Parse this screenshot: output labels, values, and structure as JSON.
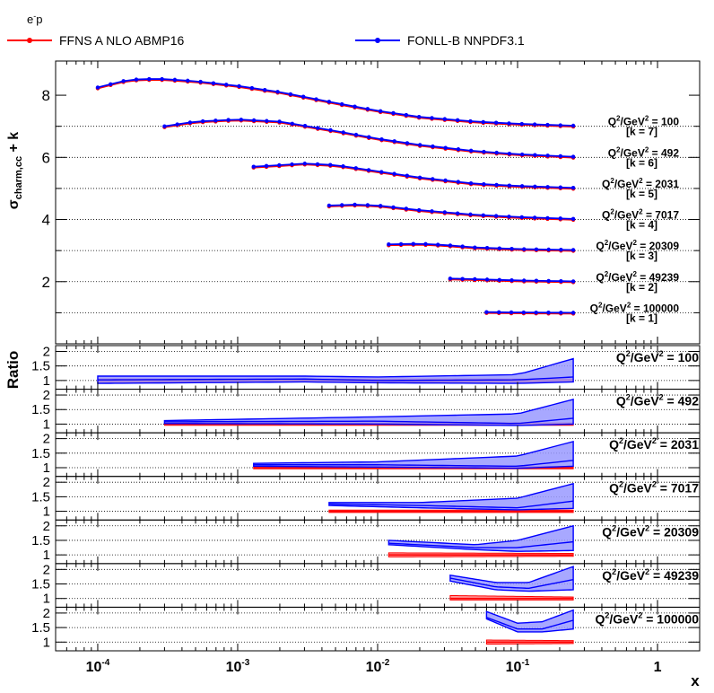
{
  "header": {
    "process": "e",
    "process_sup": "-",
    "process_tail": "p"
  },
  "legend": [
    {
      "label": "FFNS A NLO ABMP16",
      "color": "#ff0000"
    },
    {
      "label": "FONLL-B NNPDF3.1",
      "color": "#0000ff"
    }
  ],
  "axes": {
    "y_top_label": "σ",
    "y_top_label_sub": "charm,cc",
    "y_top_label_tail": " + k",
    "y_ratio_label": "Ratio",
    "x_label": "x",
    "x_ticks": [
      "10",
      "10",
      "10",
      "10",
      "1"
    ],
    "x_tick_exps": [
      "-4",
      "-3",
      "-2",
      "-1",
      ""
    ],
    "y_top_ticks": [
      "2",
      "4",
      "6",
      "8"
    ],
    "y_ratio_ticks": [
      "1",
      "1.5",
      "2"
    ]
  },
  "colors": {
    "ffns": "#ff0000",
    "fonll": "#0000ff",
    "fonll_band": "#9999ff",
    "ffns_band": "#ff9999"
  },
  "chart_data": {
    "type": "line",
    "x_scale": "log",
    "xlim": [
      5e-05,
      2
    ],
    "top_ylim": [
      0,
      9.1
    ],
    "ratio_ylim": [
      0.7,
      2.2
    ],
    "panels": [
      {
        "q2_label": "Q²/GeV² = 100",
        "q2_text": "Q",
        "q2": "100",
        "k_label": "[k = 7]",
        "k": 7,
        "x_min": 0.0001,
        "x_max": 0.25,
        "top_y": [
          [
            0.0001,
            8.25
          ],
          [
            0.00015,
            8.45
          ],
          [
            0.0002,
            8.52
          ],
          [
            0.0003,
            8.52
          ],
          [
            0.0005,
            8.45
          ],
          [
            0.001,
            8.3
          ],
          [
            0.002,
            8.1
          ],
          [
            0.005,
            7.75
          ],
          [
            0.01,
            7.5
          ],
          [
            0.02,
            7.3
          ],
          [
            0.05,
            7.15
          ],
          [
            0.1,
            7.08
          ],
          [
            0.25,
            7.02
          ]
        ],
        "ratio_fonll_center": [
          [
            0.0001,
            1.02
          ],
          [
            0.003,
            1.05
          ],
          [
            0.01,
            1.0
          ],
          [
            0.1,
            1.02
          ],
          [
            0.25,
            1.12
          ]
        ],
        "ratio_fonll_band": [
          [
            0.0001,
            0.9,
            1.15
          ],
          [
            0.003,
            0.95,
            1.15
          ],
          [
            0.01,
            0.92,
            1.12
          ],
          [
            0.1,
            0.9,
            1.2
          ],
          [
            0.25,
            0.95,
            1.75
          ]
        ],
        "ratio_ffns_band": [
          [
            0.0001,
            0.95,
            1.05
          ],
          [
            0.25,
            0.95,
            1.05
          ]
        ]
      },
      {
        "q2_label": "Q²/GeV² = 492",
        "q2_text": "Q",
        "q2": "492",
        "k_label": "[k = 6]",
        "k": 6,
        "x_min": 0.0003,
        "x_max": 0.25,
        "top_y": [
          [
            0.0003,
            7.0
          ],
          [
            0.0005,
            7.15
          ],
          [
            0.001,
            7.22
          ],
          [
            0.002,
            7.15
          ],
          [
            0.005,
            6.85
          ],
          [
            0.01,
            6.6
          ],
          [
            0.02,
            6.4
          ],
          [
            0.05,
            6.2
          ],
          [
            0.1,
            6.1
          ],
          [
            0.25,
            6.02
          ]
        ],
        "ratio_fonll_center": [
          [
            0.0003,
            1.08
          ],
          [
            0.01,
            1.1
          ],
          [
            0.1,
            1.02
          ],
          [
            0.25,
            1.2
          ]
        ],
        "ratio_fonll_band": [
          [
            0.0003,
            1.02,
            1.12
          ],
          [
            0.01,
            1.0,
            1.25
          ],
          [
            0.1,
            0.95,
            1.35
          ],
          [
            0.25,
            1.0,
            1.85
          ]
        ],
        "ratio_ffns_band": [
          [
            0.0003,
            0.96,
            1.04
          ],
          [
            0.25,
            0.96,
            1.04
          ]
        ]
      },
      {
        "q2_label": "Q²/GeV² = 2031",
        "q2_text": "Q",
        "q2": "2031",
        "k_label": "[k = 5]",
        "k": 5,
        "x_min": 0.0013,
        "x_max": 0.25,
        "top_y": [
          [
            0.0013,
            5.7
          ],
          [
            0.002,
            5.75
          ],
          [
            0.003,
            5.8
          ],
          [
            0.005,
            5.75
          ],
          [
            0.01,
            5.55
          ],
          [
            0.02,
            5.35
          ],
          [
            0.05,
            5.15
          ],
          [
            0.1,
            5.08
          ],
          [
            0.25,
            5.02
          ]
        ],
        "ratio_fonll_center": [
          [
            0.0013,
            1.1
          ],
          [
            0.01,
            1.1
          ],
          [
            0.1,
            1.05
          ],
          [
            0.25,
            1.25
          ]
        ],
        "ratio_fonll_band": [
          [
            0.0013,
            1.05,
            1.15
          ],
          [
            0.01,
            1.02,
            1.2
          ],
          [
            0.1,
            0.98,
            1.4
          ],
          [
            0.25,
            1.05,
            1.9
          ]
        ],
        "ratio_ffns_band": [
          [
            0.0013,
            0.96,
            1.04
          ],
          [
            0.25,
            0.96,
            1.04
          ]
        ]
      },
      {
        "q2_label": "Q²/GeV² = 7017",
        "q2_text": "Q",
        "q2": "7017",
        "k_label": "[k = 4]",
        "k": 4,
        "x_min": 0.0045,
        "x_max": 0.25,
        "top_y": [
          [
            0.0045,
            4.45
          ],
          [
            0.007,
            4.48
          ],
          [
            0.01,
            4.45
          ],
          [
            0.02,
            4.3
          ],
          [
            0.05,
            4.15
          ],
          [
            0.1,
            4.08
          ],
          [
            0.25,
            4.02
          ]
        ],
        "ratio_fonll_center": [
          [
            0.0045,
            1.25
          ],
          [
            0.02,
            1.2
          ],
          [
            0.1,
            1.12
          ],
          [
            0.25,
            1.35
          ]
        ],
        "ratio_fonll_band": [
          [
            0.0045,
            1.2,
            1.3
          ],
          [
            0.02,
            1.12,
            1.3
          ],
          [
            0.1,
            1.05,
            1.45
          ],
          [
            0.25,
            1.1,
            1.95
          ]
        ],
        "ratio_ffns_band": [
          [
            0.0045,
            0.96,
            1.04
          ],
          [
            0.25,
            0.96,
            1.04
          ]
        ]
      },
      {
        "q2_label": "Q²/GeV² = 20309",
        "q2_text": "Q",
        "q2": "20309",
        "k_label": "[k = 3]",
        "k": 3,
        "x_min": 0.012,
        "x_max": 0.25,
        "top_y": [
          [
            0.012,
            3.2
          ],
          [
            0.02,
            3.22
          ],
          [
            0.03,
            3.18
          ],
          [
            0.05,
            3.1
          ],
          [
            0.1,
            3.05
          ],
          [
            0.25,
            3.02
          ]
        ],
        "ratio_fonll_center": [
          [
            0.012,
            1.4
          ],
          [
            0.05,
            1.25
          ],
          [
            0.1,
            1.25
          ],
          [
            0.25,
            1.45
          ]
        ],
        "ratio_fonll_band": [
          [
            0.012,
            1.35,
            1.5
          ],
          [
            0.05,
            1.18,
            1.35
          ],
          [
            0.1,
            1.12,
            1.5
          ],
          [
            0.25,
            1.15,
            2.0
          ]
        ],
        "ratio_ffns_band": [
          [
            0.012,
            0.93,
            1.07
          ],
          [
            0.25,
            0.95,
            1.05
          ]
        ]
      },
      {
        "q2_label": "Q²/GeV² = 49239",
        "q2_text": "Q",
        "q2": "49239",
        "k_label": "[k = 2]",
        "k": 2,
        "x_min": 0.033,
        "x_max": 0.25,
        "top_y": [
          [
            0.033,
            2.1
          ],
          [
            0.05,
            2.08
          ],
          [
            0.1,
            2.04
          ],
          [
            0.25,
            2.01
          ]
        ],
        "ratio_fonll_center": [
          [
            0.033,
            1.7
          ],
          [
            0.07,
            1.4
          ],
          [
            0.12,
            1.35
          ],
          [
            0.25,
            1.65
          ]
        ],
        "ratio_fonll_band": [
          [
            0.033,
            1.6,
            1.8
          ],
          [
            0.07,
            1.3,
            1.55
          ],
          [
            0.12,
            1.25,
            1.55
          ],
          [
            0.25,
            1.3,
            2.1
          ]
        ],
        "ratio_ffns_band": [
          [
            0.033,
            0.95,
            1.1
          ],
          [
            0.25,
            0.95,
            1.05
          ]
        ]
      },
      {
        "q2_label": "Q²/GeV² = 100000",
        "q2_text": "Q",
        "q2": "100000",
        "k_label": "[k = 1]",
        "k": 1,
        "x_min": 0.06,
        "x_max": 0.25,
        "top_y": [
          [
            0.06,
            1.02
          ],
          [
            0.1,
            1.01
          ],
          [
            0.25,
            1.0
          ]
        ],
        "ratio_fonll_center": [
          [
            0.06,
            1.85
          ],
          [
            0.1,
            1.45
          ],
          [
            0.15,
            1.45
          ],
          [
            0.25,
            1.75
          ]
        ],
        "ratio_fonll_band": [
          [
            0.06,
            1.8,
            2.05
          ],
          [
            0.1,
            1.35,
            1.65
          ],
          [
            0.15,
            1.35,
            1.7
          ],
          [
            0.25,
            1.45,
            2.1
          ]
        ],
        "ratio_ffns_band": [
          [
            0.06,
            0.93,
            1.07
          ],
          [
            0.25,
            0.95,
            1.05
          ]
        ]
      }
    ]
  }
}
